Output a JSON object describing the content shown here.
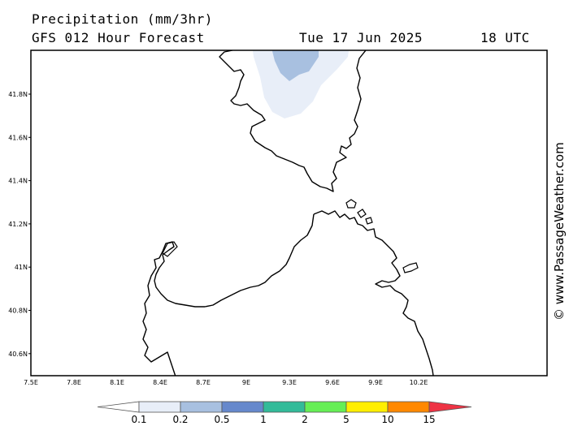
{
  "header": {
    "title": "Precipitation (mm/3hr)",
    "model": "GFS 012 Hour Forecast",
    "date": "Tue 17 Jun 2025",
    "time": "18 UTC"
  },
  "watermark": "© www.PassageWeather.com",
  "map": {
    "lon_range": [
      7.5,
      10.5
    ],
    "lat_range": [
      40.5,
      42.0
    ],
    "lon_ticks": [
      "7.5E",
      "7.8E",
      "8.1E",
      "8.4E",
      "8.7E",
      "9E",
      "9.3E",
      "9.6E",
      "9.9E",
      "10.2E"
    ],
    "lat_ticks": [
      "41.8N",
      "41.6N",
      "41.4N",
      "41.2N",
      "41N",
      "40.8N",
      "40.6N"
    ],
    "land_color": "#ffffff",
    "coastline_color": "#000000"
  },
  "legend": {
    "labels": [
      "0.1",
      "0.2",
      "0.5",
      "1",
      "2",
      "5",
      "10",
      "15"
    ],
    "colors": [
      "#ffffff",
      "#e8eef8",
      "#a8c0e0",
      "#6688cc",
      "#33bb99",
      "#66ee55",
      "#ffee00",
      "#ff8800",
      "#ee3344"
    ]
  }
}
